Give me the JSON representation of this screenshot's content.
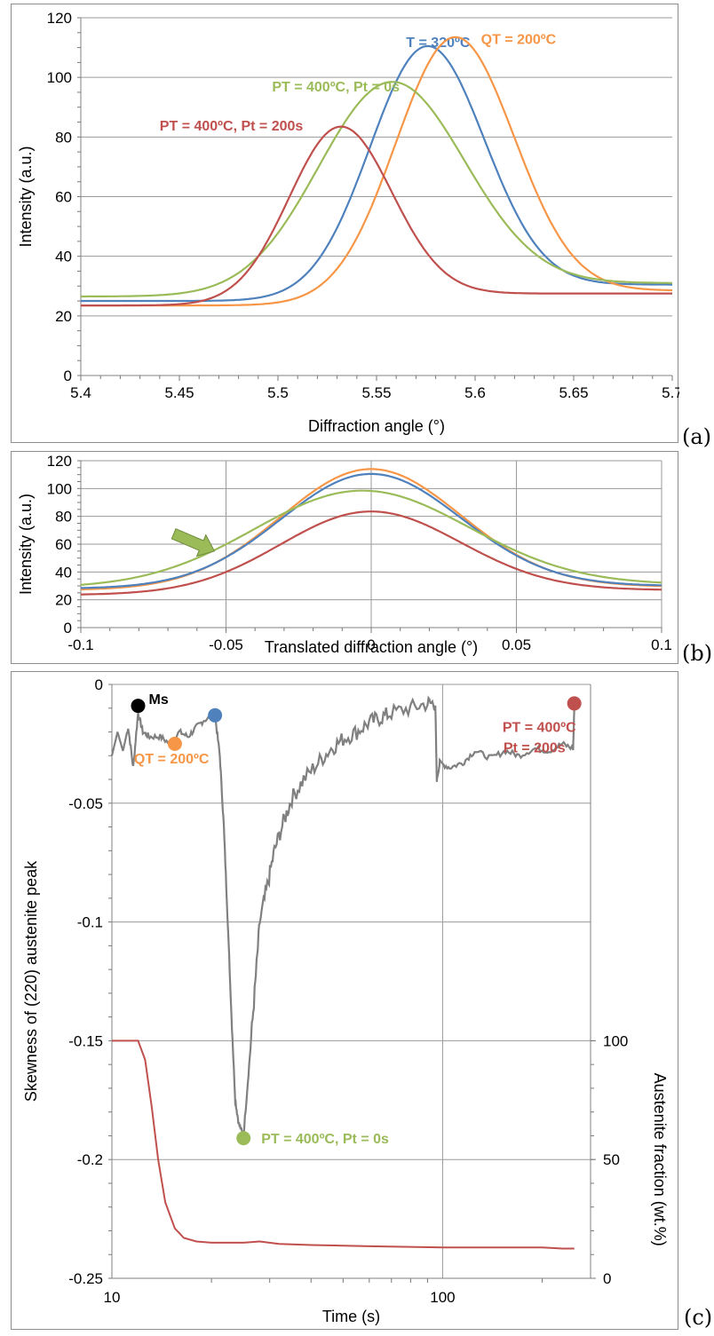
{
  "chart_data": [
    {
      "panel_label": "(a)",
      "type": "line",
      "xlabel": "Diffraction angle (°)",
      "ylabel": "Intensity (a.u.)",
      "xlim": [
        5.4,
        5.7
      ],
      "ylim": [
        0,
        120
      ],
      "x_ticks": [
        "5.4",
        "5.45",
        "5.5",
        "5.55",
        "5.6",
        "5.65",
        "5.7"
      ],
      "y_ticks": [
        "0",
        "20",
        "40",
        "60",
        "80",
        "100",
        "120"
      ],
      "grid": "horizontal",
      "series": [
        {
          "name": "T = 320ºC",
          "color": "#4f81bd",
          "peak_x": 5.576,
          "peak_y": 110.5,
          "width": 0.029,
          "base_left": 25,
          "base_right": 30.5,
          "label_pos": {
            "x": 5.565,
            "y": 112
          }
        },
        {
          "name": "QT = 200ºC",
          "color": "#f79646",
          "peak_x": 5.59,
          "peak_y": 113.5,
          "width": 0.03,
          "base_left": 23.5,
          "base_right": 28.5,
          "label_pos": {
            "x": 5.603,
            "y": 113
          }
        },
        {
          "name": "PT = 400ºC, Pt = 0s",
          "color": "#9bbb59",
          "peak_x": 5.558,
          "peak_y": 98.5,
          "width": 0.037,
          "base_left": 26.5,
          "base_right": 31,
          "label_pos": {
            "x": 5.497,
            "y": 97
          }
        },
        {
          "name": "PT = 400ºC, Pt = 200s",
          "color": "#c0504d",
          "peak_x": 5.532,
          "peak_y": 83.5,
          "width": 0.026,
          "base_left": 23.5,
          "base_right": 27.5,
          "label_pos": {
            "x": 5.44,
            "y": 84
          }
        }
      ]
    },
    {
      "panel_label": "(b)",
      "type": "line",
      "xlabel": "Translated diffraction angle (°)",
      "ylabel": "Intensity (a.u.)",
      "xlim": [
        -0.1,
        0.1
      ],
      "ylim": [
        0,
        120
      ],
      "x_ticks": [
        "-0.1",
        "-0.05",
        "0",
        "0.05",
        "0.1"
      ],
      "y_ticks": [
        "0",
        "20",
        "40",
        "60",
        "80",
        "100",
        "120"
      ],
      "grid": "both",
      "series": [
        {
          "color": "#f79646",
          "peak_x": 0.0,
          "peak_y": 114,
          "width": 0.031,
          "base_left": 27,
          "base_right": 29.5
        },
        {
          "color": "#4f81bd",
          "peak_x": 0.0,
          "peak_y": 110.5,
          "width": 0.031,
          "base_left": 28,
          "base_right": 30
        },
        {
          "color": "#9bbb59",
          "peak_x": -0.003,
          "peak_y": 98.5,
          "width": 0.037,
          "base_left": 28.5,
          "base_right": 31
        },
        {
          "color": "#c0504d",
          "peak_x": 0.0,
          "peak_y": 83.5,
          "width": 0.031,
          "base_left": 23.5,
          "base_right": 27
        }
      ],
      "annotation": {
        "type": "arrow",
        "color": "#9bbb59",
        "from": [
          -0.068,
          67.5
        ],
        "to": [
          -0.054,
          55
        ]
      }
    },
    {
      "panel_label": "(c)",
      "type": "line",
      "xlabel": "Time (s)",
      "ylabel": "Skewness of (220) austenite peak",
      "y2label": "Austenite fraction (wt.%)",
      "xscale": "log",
      "xlim": [
        10,
        280
      ],
      "ylim": [
        -0.25,
        0
      ],
      "y2lim": [
        0,
        100
      ],
      "x_ticks": [
        "10",
        "100"
      ],
      "y_ticks": [
        "-0.25",
        "-0.2",
        "-0.15",
        "-0.1",
        "-0.05",
        "0"
      ],
      "y2_ticks": [
        "0",
        "50",
        "100"
      ],
      "grid": "both",
      "skewness_series": {
        "color": "#808080",
        "points": [
          [
            10,
            -0.03
          ],
          [
            10.4,
            -0.02
          ],
          [
            10.8,
            -0.028
          ],
          [
            11.2,
            -0.018
          ],
          [
            11.6,
            -0.035
          ],
          [
            12,
            -0.012
          ],
          [
            12.4,
            -0.02
          ],
          [
            13,
            -0.022
          ],
          [
            14,
            -0.022
          ],
          [
            15,
            -0.025
          ],
          [
            16,
            -0.02
          ],
          [
            17,
            -0.022
          ],
          [
            18,
            -0.018
          ],
          [
            19,
            -0.015
          ],
          [
            20.5,
            -0.013
          ],
          [
            21.2,
            -0.03
          ],
          [
            21.8,
            -0.06
          ],
          [
            22.4,
            -0.1
          ],
          [
            23,
            -0.14
          ],
          [
            23.6,
            -0.175
          ],
          [
            24.2,
            -0.185
          ],
          [
            25,
            -0.19
          ],
          [
            26,
            -0.16
          ],
          [
            27,
            -0.13
          ],
          [
            28,
            -0.1
          ],
          [
            29.5,
            -0.085
          ],
          [
            31,
            -0.07
          ],
          [
            33,
            -0.058
          ],
          [
            35,
            -0.048
          ],
          [
            38,
            -0.04
          ],
          [
            42,
            -0.033
          ],
          [
            46,
            -0.027
          ],
          [
            50,
            -0.023
          ],
          [
            55,
            -0.02
          ],
          [
            60,
            -0.016
          ],
          [
            65,
            -0.014
          ],
          [
            70,
            -0.012
          ],
          [
            80,
            -0.01
          ],
          [
            90,
            -0.008
          ],
          [
            95,
            -0.008
          ],
          [
            96,
            -0.04
          ],
          [
            98,
            -0.033
          ],
          [
            105,
            -0.035
          ],
          [
            115,
            -0.033
          ],
          [
            125,
            -0.028
          ],
          [
            140,
            -0.031
          ],
          [
            155,
            -0.028
          ],
          [
            170,
            -0.03
          ],
          [
            190,
            -0.027
          ],
          [
            210,
            -0.028
          ],
          [
            230,
            -0.025
          ],
          [
            248,
            -0.027
          ],
          [
            250,
            -0.01
          ]
        ]
      },
      "austenite_series": {
        "color": "#c0504d",
        "points": [
          [
            10,
            100
          ],
          [
            12,
            100
          ],
          [
            12.6,
            92
          ],
          [
            13.2,
            72
          ],
          [
            13.8,
            50
          ],
          [
            14.5,
            32
          ],
          [
            15.5,
            21
          ],
          [
            16.5,
            17
          ],
          [
            18,
            15.5
          ],
          [
            20,
            15
          ],
          [
            25,
            15
          ],
          [
            28,
            15.5
          ],
          [
            32,
            14.5
          ],
          [
            40,
            14
          ],
          [
            60,
            13.5
          ],
          [
            100,
            13
          ],
          [
            150,
            13
          ],
          [
            200,
            13
          ],
          [
            230,
            12.5
          ],
          [
            250,
            12.5
          ]
        ]
      },
      "markers": [
        {
          "name": "Ms",
          "color": "#000000",
          "x": 12,
          "y": -0.009
        },
        {
          "name": "QT = 200ºC",
          "color": "#f79646",
          "x": 15.5,
          "y": -0.025
        },
        {
          "name": "",
          "color": "#4f81bd",
          "x": 20.5,
          "y": -0.013
        },
        {
          "name": "PT = 400ºC, Pt = 0s",
          "color": "#9bbb59",
          "x": 25,
          "y": -0.191
        },
        {
          "name": "PT = 400ºC",
          "name_line2": "Pt = 200s",
          "color": "#c0504d",
          "x": 250,
          "y": -0.008
        }
      ]
    }
  ]
}
